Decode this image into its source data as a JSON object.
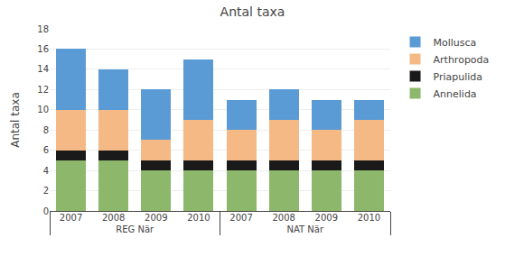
{
  "chart_data": {
    "type": "bar",
    "title": "Antal taxa",
    "ylabel": "Antal taxa",
    "stacked": true,
    "categories": [
      "2007",
      "2008",
      "2009",
      "2010",
      "2007",
      "2008",
      "2009",
      "2010"
    ],
    "category_groups": [
      "REG När",
      "REG När",
      "REG När",
      "REG När",
      "NAT När",
      "NAT När",
      "NAT När",
      "NAT När"
    ],
    "series": [
      {
        "name": "Annelida",
        "color": "#8DB76B",
        "values": [
          5,
          5,
          4,
          4,
          4,
          4,
          4,
          4
        ]
      },
      {
        "name": "Priapulida",
        "color": "#1A1A1A",
        "values": [
          1,
          1,
          1,
          1,
          1,
          1,
          1,
          1
        ]
      },
      {
        "name": "Arthropoda",
        "color": "#F4B984",
        "values": [
          4,
          4,
          2,
          4,
          3,
          4,
          3,
          4
        ]
      },
      {
        "name": "Mollusca",
        "color": "#5B9BD5",
        "values": [
          6,
          4,
          5,
          6,
          3,
          3,
          3,
          2
        ]
      }
    ],
    "ylim": [
      0,
      18
    ],
    "yticks": [
      0,
      2,
      4,
      6,
      8,
      10,
      12,
      14,
      16,
      18
    ],
    "grid": true,
    "legend": "right"
  }
}
